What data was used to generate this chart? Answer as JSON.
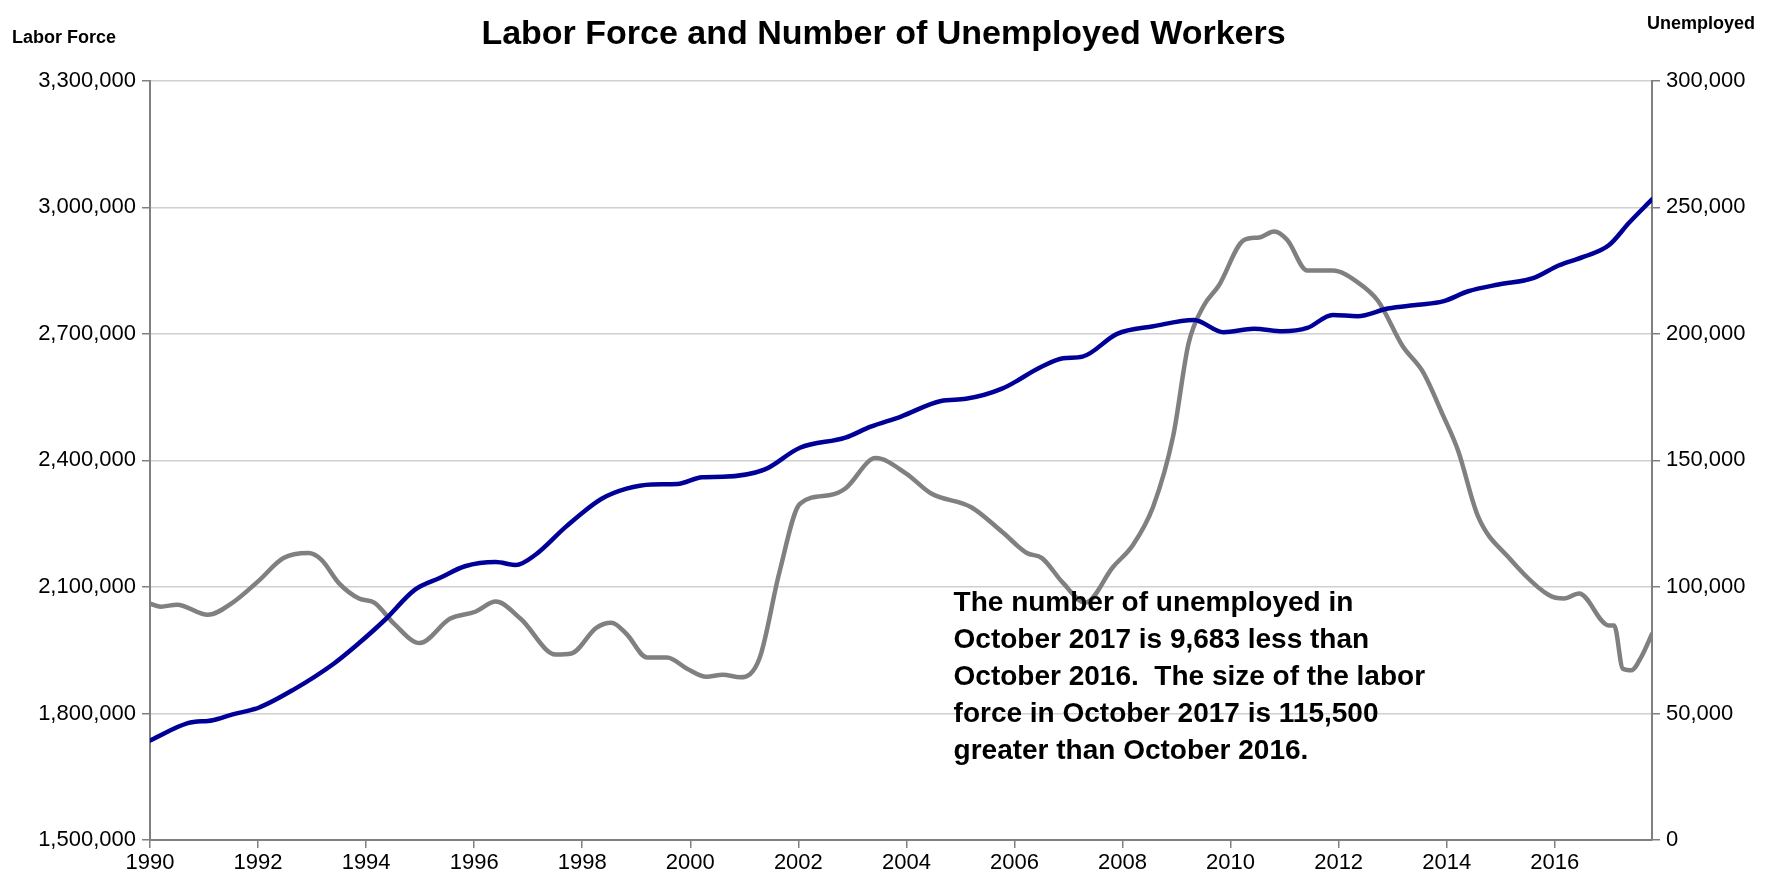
{
  "chart_data": {
    "type": "line",
    "title": "Labor Force and Number of Unemployed Workers",
    "ylabel": "Labor Force",
    "y2label": "Unemployed",
    "xlim": [
      1990,
      2017.8
    ],
    "xticks": [
      1990,
      1992,
      1994,
      1996,
      1998,
      2000,
      2002,
      2004,
      2006,
      2008,
      2010,
      2012,
      2014,
      2016
    ],
    "ylim": [
      1500000,
      3300000
    ],
    "yticks": [
      {
        "value": 1500000,
        "label": "1,500,000"
      },
      {
        "value": 1800000,
        "label": "1,800,000"
      },
      {
        "value": 2100000,
        "label": "2,100,000"
      },
      {
        "value": 2400000,
        "label": "2,400,000"
      },
      {
        "value": 2700000,
        "label": "2,700,000"
      },
      {
        "value": 3000000,
        "label": "3,000,000"
      },
      {
        "value": 3300000,
        "label": "3,300,000"
      }
    ],
    "y2lim": [
      0,
      300000
    ],
    "y2ticks": [
      0,
      {
        "value": 50000,
        "label": "50,000"
      },
      {
        "value": 100000,
        "label": "100,000"
      },
      {
        "value": 150000,
        "label": "150,000"
      },
      {
        "value": 200000,
        "label": "200,000"
      },
      {
        "value": 250000,
        "label": "250,000"
      },
      {
        "value": 300000,
        "label": "300,000"
      }
    ],
    "grid": "y",
    "legend": false,
    "marker": "none",
    "line_style": "solid",
    "annotations": [
      "The number of unemployed in October 2017 is 9,683 less than October 2016.  The size of the labor force in October 2017 is 115,500 greater than October 2016."
    ],
    "series": [
      {
        "color": "#000099",
        "x": [
          1990,
          1990.7,
          1991.16,
          1991.53,
          1992,
          1992.65,
          1993.4,
          1993.87,
          1994.34,
          1994.9,
          1995.36,
          1995.83,
          1996.4,
          1996.77,
          1997.14,
          1997.7,
          1998.36,
          1998.82,
          1999.29,
          1999.76,
          2000.22,
          2000.6,
          2001.37,
          2002.03,
          2002.87,
          2003.34,
          2003.9,
          2004.64,
          2005.1,
          2005.77,
          2006.5,
          2006.9,
          2007.26,
          2007.9,
          2008.57,
          2009.32,
          2009.87,
          2010.43,
          2010.96,
          2011.42,
          2011.89,
          2012.35,
          2012.91,
          2013.47,
          2013.93,
          2014.4,
          2014.96,
          2015.6,
          2016.07,
          2016.54,
          2017,
          2017.38,
          2017.8
        ],
        "values": [
          1736000,
          1777000,
          1784000,
          1798000,
          1813000,
          1856000,
          1918000,
          1967000,
          2021000,
          2093000,
          2121000,
          2149000,
          2159000,
          2152000,
          2177000,
          2243000,
          2309000,
          2333000,
          2343000,
          2344000,
          2360000,
          2361000,
          2378000,
          2430000,
          2454000,
          2480000,
          2504000,
          2541000,
          2546000,
          2570000,
          2622000,
          2642000,
          2646000,
          2700000,
          2718000,
          2733000,
          2704000,
          2712000,
          2706000,
          2714000,
          2745000,
          2742000,
          2760000,
          2769000,
          2777000,
          2801000,
          2817000,
          2832000,
          2862000,
          2883000,
          2910000,
          2964000,
          3019000
        ]
      },
      {
        "color": "#808080",
        "axis": "y2",
        "x": [
          1990,
          1990.2,
          1990.5,
          1991.07,
          1991.53,
          1992,
          1992.47,
          1992.93,
          1993.17,
          1993.5,
          1993.87,
          1994.15,
          1994.52,
          1994.99,
          1995.55,
          1996.02,
          1996.4,
          1996.86,
          1997.51,
          1997.8,
          1998.26,
          1998.54,
          1998.82,
          1999.2,
          1999.57,
          1999.94,
          2000.3,
          2000.6,
          2000.93,
          2001.28,
          2001.65,
          2002.03,
          2002.59,
          2002.87,
          2003.43,
          2003.99,
          2004.46,
          2005.2,
          2005.77,
          2006.23,
          2006.51,
          2006.89,
          2007.31,
          2007.82,
          2008.2,
          2008.57,
          2008.94,
          2009.22,
          2009.5,
          2009.78,
          2010.25,
          2010.53,
          2010.81,
          2011.05,
          2011.42,
          2011.89,
          2012.35,
          2012.73,
          2013.19,
          2013.56,
          2013.93,
          2014.21,
          2014.58,
          2015.14,
          2015.89,
          2016.17,
          2016.45,
          2017,
          2017.1,
          2017.26,
          2017.42,
          2017.61,
          2017.8
        ],
        "values": [
          93400,
          92200,
          93000,
          89000,
          93800,
          102200,
          111400,
          113400,
          110800,
          101400,
          95400,
          93800,
          85400,
          77800,
          87400,
          90200,
          94200,
          87400,
          73300,
          73700,
          83800,
          85800,
          81400,
          72100,
          72100,
          67700,
          64500,
          65300,
          64300,
          71700,
          105800,
          132900,
          136300,
          138900,
          150900,
          144900,
          136900,
          131500,
          121800,
          113400,
          111400,
          101800,
          93800,
          107800,
          116800,
          131900,
          159900,
          196000,
          211000,
          219000,
          237100,
          238100,
          240500,
          237100,
          225000,
          225000,
          220400,
          213000,
          195000,
          185000,
          167900,
          153900,
          127900,
          111800,
          96800,
          95400,
          97400,
          84800,
          84800,
          67700,
          67100,
          72700,
          81400
        ]
      }
    ]
  }
}
